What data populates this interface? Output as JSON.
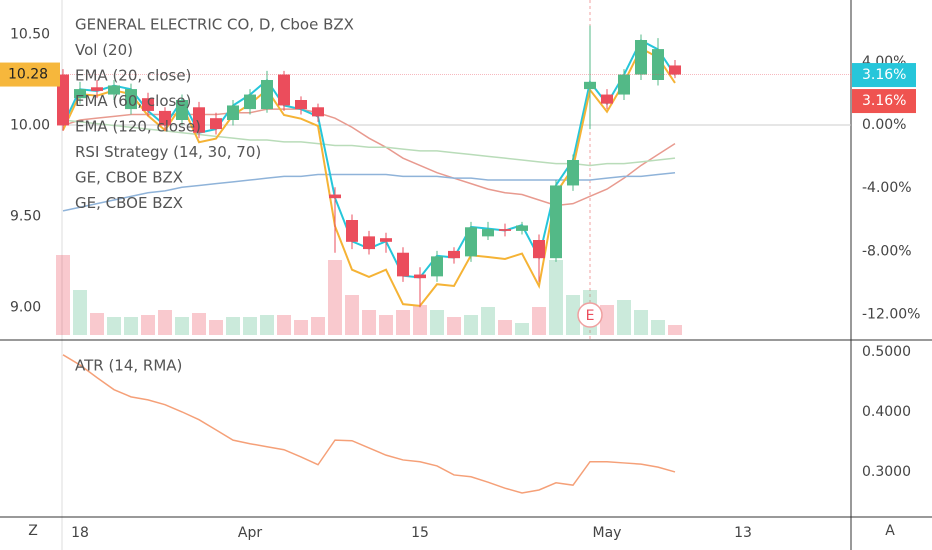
{
  "chart_data": [
    {
      "type": "candlestick",
      "title": "GENERAL ELECTRIC CO, D, Cboe BZX",
      "volume_name": "Vol (20)",
      "strategy_name": "RSI Strategy (14, 30, 70)",
      "change_label": "3.16%",
      "earnings_marker": "E",
      "up_color": "#53b987",
      "down_color": "#eb4d5c",
      "categories": [
        null,
        "18",
        null,
        null,
        null,
        null,
        null,
        null,
        null,
        null,
        null,
        "Apr",
        null,
        null,
        null,
        null,
        null,
        null,
        null,
        null,
        null,
        "15",
        null,
        null,
        null,
        null,
        null,
        null,
        null,
        null,
        null,
        null,
        "May",
        null,
        null,
        null,
        null,
        null,
        null,
        null,
        "13",
        null,
        null,
        null,
        null,
        null,
        null
      ],
      "open": [
        10.28,
        10.15,
        10.21,
        10.17,
        10.09,
        10.15,
        10.08,
        10.03,
        10.1,
        10.04,
        10.03,
        10.09,
        10.09,
        10.28,
        10.14,
        10.1,
        9.62,
        9.48,
        9.39,
        9.38,
        9.3,
        9.18,
        9.17,
        9.31,
        9.28,
        9.39,
        9.43,
        9.42,
        9.37,
        9.27,
        9.67,
        10.2,
        10.17,
        10.17,
        10.28,
        10.25,
        10.33,
        null,
        null,
        null,
        null,
        null,
        null,
        null,
        null,
        null,
        null
      ],
      "high": [
        10.31,
        10.24,
        10.25,
        10.25,
        10.23,
        10.18,
        10.1,
        10.17,
        10.13,
        10.07,
        10.14,
        10.2,
        10.3,
        10.3,
        10.16,
        10.12,
        9.66,
        9.51,
        9.42,
        9.41,
        9.33,
        9.22,
        9.31,
        9.33,
        9.47,
        9.47,
        9.46,
        9.47,
        9.4,
        9.7,
        9.84,
        10.55,
        10.2,
        10.31,
        10.5,
        10.48,
        10.36,
        null,
        null,
        null,
        null,
        null,
        null,
        null,
        null,
        null,
        null
      ],
      "low": [
        9.97,
        10.12,
        10.15,
        10.14,
        10.06,
        10.05,
        9.97,
        10.0,
        9.93,
        9.95,
        10.0,
        10.06,
        10.07,
        10.08,
        10.06,
        10.02,
        9.3,
        9.32,
        9.29,
        9.3,
        9.14,
        9.0,
        9.14,
        9.24,
        9.25,
        9.37,
        9.39,
        9.4,
        9.14,
        9.25,
        9.64,
        9.98,
        10.09,
        10.14,
        10.25,
        10.22,
        10.26,
        null,
        null,
        null,
        null,
        null,
        null,
        null,
        null,
        null,
        null
      ],
      "close": [
        10.0,
        10.2,
        10.19,
        10.22,
        10.2,
        10.08,
        10.0,
        10.14,
        9.96,
        9.98,
        10.11,
        10.17,
        10.25,
        10.11,
        10.09,
        10.05,
        9.6,
        9.36,
        9.32,
        9.36,
        9.17,
        9.16,
        9.28,
        9.27,
        9.44,
        9.43,
        9.42,
        9.45,
        9.27,
        9.67,
        9.81,
        10.24,
        10.12,
        10.28,
        10.47,
        10.42,
        10.28,
        null,
        null,
        null,
        null,
        null,
        null,
        null,
        null,
        null,
        null
      ],
      "volume": [
        80,
        45,
        22,
        18,
        18,
        20,
        25,
        18,
        22,
        15,
        18,
        18,
        20,
        20,
        15,
        18,
        75,
        40,
        25,
        20,
        25,
        30,
        25,
        18,
        20,
        28,
        15,
        12,
        28,
        75,
        40,
        45,
        30,
        35,
        25,
        15,
        10,
        null,
        null,
        null,
        null,
        null,
        null,
        null,
        null,
        null,
        null
      ],
      "series": [
        {
          "name": "EMA (20, close)",
          "color": "#e89a8f",
          "values": [
            10.0,
            10.03,
            10.04,
            10.05,
            10.06,
            10.06,
            10.06,
            10.06,
            10.06,
            10.06,
            10.07,
            10.07,
            10.09,
            10.09,
            10.09,
            10.07,
            10.04,
            9.99,
            9.93,
            9.88,
            9.82,
            9.78,
            9.74,
            9.71,
            9.68,
            9.65,
            9.63,
            9.62,
            9.59,
            9.56,
            9.57,
            9.61,
            9.65,
            9.71,
            9.78,
            9.84,
            9.9,
            null,
            null,
            null,
            null,
            null,
            null,
            null,
            null,
            null,
            null
          ]
        },
        {
          "name": "EMA (60, close)",
          "color": "#b9dcb9",
          "values": [
            10.03,
            10.02,
            10.01,
            10.0,
            9.99,
            9.98,
            9.97,
            9.96,
            9.95,
            9.94,
            9.93,
            9.92,
            9.92,
            9.91,
            9.91,
            9.9,
            9.89,
            9.89,
            9.88,
            9.88,
            9.87,
            9.86,
            9.86,
            9.85,
            9.84,
            9.83,
            9.82,
            9.81,
            9.8,
            9.79,
            9.79,
            9.78,
            9.79,
            9.79,
            9.8,
            9.81,
            9.82,
            null,
            null,
            null,
            null,
            null,
            null,
            null,
            null,
            null,
            null
          ]
        },
        {
          "name": "EMA (120, close)",
          "color": "#8fb3d9",
          "values": [
            9.53,
            9.55,
            9.57,
            9.59,
            9.61,
            9.63,
            9.64,
            9.66,
            9.67,
            9.68,
            9.69,
            9.7,
            9.71,
            9.72,
            9.72,
            9.73,
            9.73,
            9.73,
            9.73,
            9.73,
            9.72,
            9.72,
            9.72,
            9.71,
            9.71,
            9.7,
            9.7,
            9.7,
            9.7,
            9.7,
            9.7,
            9.7,
            9.71,
            9.72,
            9.72,
            9.73,
            9.74,
            null,
            null,
            null,
            null,
            null,
            null,
            null,
            null,
            null,
            null
          ]
        },
        {
          "name": "GE, CBOE BZX",
          "color": "#26c6da",
          "axis": "y2",
          "last_label": "3.16%",
          "values": [
            -0.03,
            2.26,
            2.15,
            2.49,
            2.26,
            0.89,
            -0.03,
            1.57,
            -0.49,
            -0.26,
            1.23,
            1.92,
            2.83,
            1.23,
            1.0,
            0.54,
            -4.61,
            -7.36,
            -7.82,
            -7.36,
            -9.54,
            -9.65,
            -8.28,
            -8.39,
            -6.45,
            -6.56,
            -6.68,
            -6.34,
            -8.39,
            -3.81,
            -2.21,
            2.72,
            1.34,
            3.18,
            5.35,
            4.78,
            3.16,
            null,
            null,
            null,
            null,
            null,
            null,
            null,
            null,
            null,
            null
          ]
        },
        {
          "name": "GE, CBOE BZX",
          "color": "#f5b335",
          "axis": "y2",
          "values": [
            -0.33,
            1.96,
            1.85,
            2.19,
            1.96,
            0.59,
            -0.33,
            1.27,
            -1.09,
            -0.86,
            0.63,
            1.32,
            2.23,
            0.63,
            0.4,
            -0.06,
            -6.41,
            -9.16,
            -9.62,
            -9.16,
            -11.34,
            -11.45,
            -10.08,
            -10.19,
            -8.25,
            -8.36,
            -8.48,
            -8.14,
            -10.19,
            -4.31,
            -2.71,
            2.22,
            0.84,
            2.68,
            4.85,
            4.28,
            2.66,
            null,
            null,
            null,
            null,
            null,
            null,
            null,
            null,
            null,
            null
          ]
        }
      ],
      "ylim": [
        8.82,
        10.69
      ],
      "yticks": [
        {
          "value": 9,
          "label": "9.00"
        },
        {
          "value": 9.5,
          "label": "9.50"
        },
        {
          "value": 10,
          "label": "10.00"
        },
        {
          "value": 10.5,
          "label": "10.50"
        }
      ],
      "y2lim": [
        -13.61,
        7.91
      ],
      "y2ticks": [
        {
          "value": -12,
          "label": "-12.00%"
        },
        {
          "value": -8,
          "label": "-8.00%"
        },
        {
          "value": -4,
          "label": "-4.00%"
        },
        {
          "value": 0,
          "label": "0.00%"
        },
        {
          "value": 4,
          "label": "4.00%"
        }
      ]
    },
    {
      "type": "line",
      "series": [
        {
          "name": "ATR (14, RMA)",
          "color": "#f5a078",
          "values": [
            0.495,
            0.478,
            0.457,
            0.437,
            0.425,
            0.42,
            0.412,
            0.4,
            0.387,
            0.37,
            0.353,
            0.347,
            0.342,
            0.337,
            0.325,
            0.312,
            0.353,
            0.352,
            0.34,
            0.328,
            0.32,
            0.317,
            0.31,
            0.295,
            0.292,
            0.283,
            0.273,
            0.265,
            0.27,
            0.282,
            0.278,
            0.317,
            0.317,
            0.315,
            0.313,
            0.308,
            0.3,
            null,
            null,
            null,
            null,
            null,
            null,
            null,
            null,
            null,
            null
          ]
        }
      ],
      "ylim": [
        0.225,
        0.518
      ],
      "yticks": [
        {
          "value": 0.3,
          "label": "0.3000"
        },
        {
          "value": 0.4,
          "label": "0.4000"
        },
        {
          "value": 0.5,
          "label": "0.5000"
        }
      ]
    }
  ],
  "controls": {
    "left": "Z",
    "right": "A"
  }
}
